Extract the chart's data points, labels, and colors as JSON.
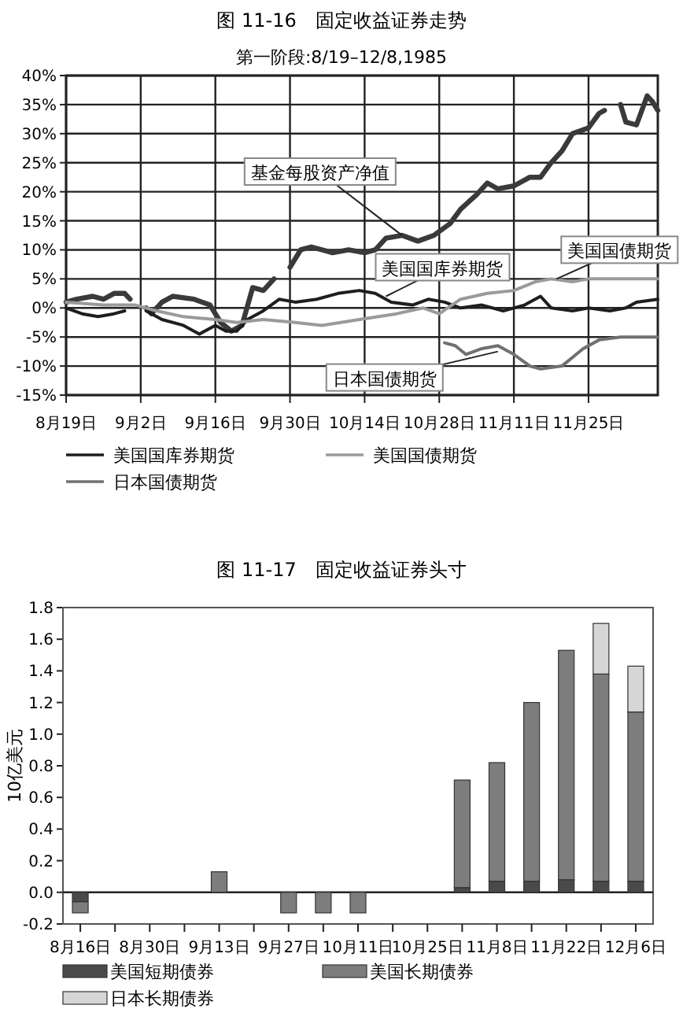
{
  "chart_data": [
    {
      "type": "line",
      "title": "图 11-16　固定收益证券走势",
      "subtitle": "第一阶段:8/19–12/8,1985",
      "xlim": [
        "--08-19",
        "--12-08"
      ],
      "xticks": [
        {
          "value": "--08-19",
          "label": "8月19日"
        },
        {
          "value": "--09-02",
          "label": "9月2日"
        },
        {
          "value": "--09-16",
          "label": "9月16日"
        },
        {
          "value": "--09-30",
          "label": "9月30日"
        },
        {
          "value": "--10-14",
          "label": "10月14日"
        },
        {
          "value": "--10-28",
          "label": "10月28日"
        },
        {
          "value": "--11-11",
          "label": "11月11日"
        },
        {
          "value": "--11-25",
          "label": "11月25日"
        }
      ],
      "ylim": [
        -15,
        40
      ],
      "yticks": [
        {
          "value": 40,
          "label": "40%"
        },
        {
          "value": 35,
          "label": "35%"
        },
        {
          "value": 30,
          "label": "30%"
        },
        {
          "value": 25,
          "label": "25%"
        },
        {
          "value": 20,
          "label": "20%"
        },
        {
          "value": 15,
          "label": "15%"
        },
        {
          "value": 10,
          "label": "10%"
        },
        {
          "value": 5,
          "label": "5%"
        },
        {
          "value": 0,
          "label": "0%"
        },
        {
          "value": -5,
          "label": "-5%"
        },
        {
          "value": -10,
          "label": "-10%"
        },
        {
          "value": -15,
          "label": "-15%"
        }
      ],
      "grid": true,
      "legend": "bottom",
      "series": [
        {
          "color": "#3a3a3a",
          "x": [
            "--08-19",
            "--08-21",
            "--08-24",
            "--08-26",
            "--08-28",
            "--08-30",
            "--08-31",
            "--09-01",
            "--09-03",
            "--09-04",
            "--09-06",
            "--09-08",
            "--09-12",
            "--09-15",
            "--09-17",
            "--09-19",
            "--09-21",
            "--09-23",
            "--09-25",
            "--09-27",
            "--09-28",
            "--09-30",
            "--10-02",
            "--10-04",
            "--10-08",
            "--10-11",
            "--10-14",
            "--10-16",
            "--10-18",
            "--10-21",
            "--10-24",
            "--10-27",
            "--10-30",
            "--11-01",
            "--11-04",
            "--11-06",
            "--11-08",
            "--11-11",
            "--11-14",
            "--11-16",
            "--11-18",
            "--11-20",
            "--11-22",
            "--11-25",
            "--11-27",
            "--11-28",
            "--11-29",
            "--12-01",
            "--12-02",
            "--12-04",
            "--12-06",
            "--12-07",
            "--12-08"
          ],
          "values": [
            1,
            1.5,
            2,
            1.5,
            2.5,
            2.5,
            1.5,
            null,
            0,
            -1,
            1,
            2,
            1.5,
            0.5,
            -2.5,
            -4,
            -3,
            3.5,
            3,
            5,
            null,
            7,
            10,
            10.5,
            9.5,
            10,
            9.5,
            10,
            12,
            12.5,
            11.5,
            12.5,
            14.5,
            17,
            19.5,
            21.5,
            20.5,
            21,
            22.5,
            22.5,
            25,
            27,
            30,
            31,
            33.5,
            34,
            null,
            35,
            32,
            31.5,
            36.5,
            35.5,
            34
          ]
        },
        {
          "name": "美国国库券期货",
          "color": "#1e1e1e",
          "x": [
            "--08-19",
            "--08-22",
            "--08-25",
            "--08-28",
            "--08-30",
            "--08-31",
            "--09-03",
            "--09-06",
            "--09-10",
            "--09-13",
            "--09-16",
            "--09-18",
            "--09-20",
            "--09-22",
            "--09-25",
            "--09-28",
            "--10-01",
            "--10-05",
            "--10-09",
            "--10-13",
            "--10-16",
            "--10-19",
            "--10-23",
            "--10-26",
            "--10-29",
            "--11-01",
            "--11-05",
            "--11-09",
            "--11-13",
            "--11-16",
            "--11-18",
            "--11-22",
            "--11-25",
            "--11-29",
            "--12-02",
            "--12-04",
            "--12-08"
          ],
          "values": [
            0,
            -1,
            -1.5,
            -1,
            -0.5,
            null,
            -0.5,
            -2,
            -3,
            -4.5,
            -3,
            -4,
            -4,
            -2,
            -0.5,
            1.5,
            1,
            1.5,
            2.5,
            3,
            2.5,
            1,
            0.5,
            1.5,
            1,
            0,
            0.5,
            -0.5,
            0.5,
            2,
            0,
            -0.5,
            0,
            -0.5,
            0,
            1,
            1.5
          ]
        },
        {
          "name": "美国国债期货",
          "color": "#9a9a9a",
          "x": [
            "--08-19",
            "--08-26",
            "--09-01",
            "--09-05",
            "--09-10",
            "--09-16",
            "--09-20",
            "--09-25",
            "--10-01",
            "--10-06",
            "--10-13",
            "--10-20",
            "--10-25",
            "--10-28",
            "--11-01",
            "--11-06",
            "--11-11",
            "--11-15",
            "--11-18",
            "--11-22",
            "--11-25",
            "--12-01",
            "--12-08"
          ],
          "values": [
            1,
            0.5,
            0.5,
            -0.5,
            -1.5,
            -2,
            -2.5,
            -2,
            -2.5,
            -3,
            -2,
            -1,
            0,
            -1,
            1.5,
            2.5,
            3,
            4.5,
            5,
            4.5,
            5,
            5,
            5
          ]
        },
        {
          "name": "日本国债期货",
          "color": "#707070",
          "x": [
            "--10-29",
            "--10-31",
            "--11-02",
            "--11-05",
            "--11-08",
            "--11-11",
            "--11-14",
            "--11-16",
            "--11-20",
            "--11-24",
            "--11-27",
            "--12-01",
            "--12-08"
          ],
          "values": [
            -6,
            -6.5,
            -8,
            -7,
            -6.5,
            -8,
            -10,
            -10.5,
            -10,
            -7,
            -5.5,
            -5,
            -5
          ]
        }
      ],
      "annotations": [
        {
          "text": "基金每股资产净值",
          "x": "--10-21",
          "y": 12.5
        },
        {
          "text": "美国国库券期货",
          "x": "--10-18",
          "y": 2
        },
        {
          "text": "美国国债期货",
          "x": "--11-19",
          "y": 5
        },
        {
          "text": "日本国债期货",
          "x": "--11-08",
          "y": -7.5
        }
      ]
    },
    {
      "type": "bar",
      "stacked": true,
      "title": "图 11-17　固定收益证券头寸",
      "ylabel": "10亿美元",
      "categories": [
        "8月16日",
        null,
        "8月30日",
        null,
        "9月13日",
        null,
        "9月27日",
        null,
        "10月11日",
        null,
        "10月25日",
        null,
        "11月8日",
        null,
        "11月22日",
        null,
        "12月6日"
      ],
      "ylim": [
        -0.2,
        1.8
      ],
      "yticks": [
        -0.2,
        {
          "value": 0,
          "label": "0.0"
        },
        0.2,
        0.4,
        0.6,
        0.8,
        {
          "value": 1,
          "label": "1.0"
        },
        1.2,
        1.4,
        1.6,
        1.8
      ],
      "grid": false,
      "legend": "bottom",
      "ref_lines": [
        {
          "axis": "y",
          "value": 0
        }
      ],
      "series": [
        {
          "name": "美国短期债券",
          "color": "#4a4a4a",
          "values": [
            -0.06,
            0,
            0,
            0,
            0,
            0,
            0,
            0,
            0,
            0,
            0,
            0.03,
            0.07,
            0.07,
            0.08,
            0.07,
            0.07
          ]
        },
        {
          "name": "美国长期债券",
          "color": "#7d7d7d",
          "values": [
            -0.07,
            0,
            0,
            0,
            0.13,
            0,
            -0.13,
            -0.13,
            -0.13,
            0,
            0,
            0.68,
            0.75,
            1.13,
            1.45,
            1.31,
            1.07
          ]
        },
        {
          "name": "日本长期债券",
          "color": "#d6d6d6",
          "values": [
            0,
            0,
            0,
            0,
            0,
            0,
            0,
            0,
            0,
            0,
            0,
            0,
            0,
            0,
            0,
            0.32,
            0.29
          ]
        }
      ]
    }
  ]
}
